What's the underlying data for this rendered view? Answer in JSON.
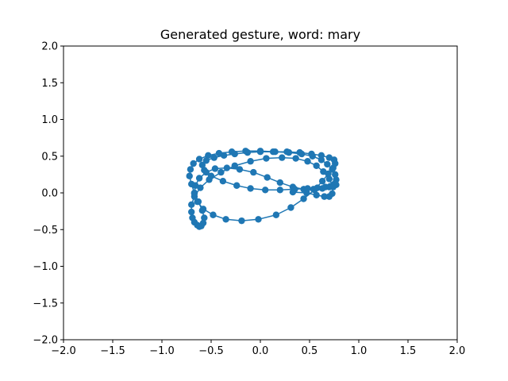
{
  "chart_data": {
    "type": "line",
    "title": "Generated gesture, word: mary",
    "xlabel": "",
    "ylabel": "",
    "xlim": [
      -2.0,
      2.0
    ],
    "ylim": [
      -2.0,
      2.0
    ],
    "xticks": [
      -2.0,
      -1.5,
      -1.0,
      -0.5,
      0.0,
      0.5,
      1.0,
      1.5,
      2.0
    ],
    "yticks": [
      -2.0,
      -1.5,
      -1.0,
      -0.5,
      0.0,
      0.5,
      1.0,
      1.5,
      2.0
    ],
    "xtick_labels": [
      "−2.0",
      "−1.5",
      "−1.0",
      "−0.5",
      "0.0",
      "0.5",
      "1.0",
      "1.5",
      "2.0"
    ],
    "ytick_labels": [
      "−2.0",
      "−1.5",
      "−1.0",
      "−0.5",
      "0.0",
      "0.5",
      "1.0",
      "1.5",
      "2.0"
    ],
    "grid": false,
    "color": "#1f77b4",
    "marker": "circle",
    "series": [
      {
        "x": [
          0.33,
          0.47,
          0.57,
          0.65,
          0.7,
          0.73,
          0.74,
          0.7,
          0.64,
          0.57,
          0.48,
          0.36,
          0.22,
          0.06,
          -0.1,
          -0.26,
          -0.4,
          -0.52,
          -0.61,
          -0.67,
          -0.7,
          -0.7,
          -0.69,
          -0.67,
          -0.64,
          -0.62,
          -0.6,
          -0.58,
          -0.57,
          -0.59,
          -0.63,
          -0.67,
          -0.7,
          -0.72,
          -0.71,
          -0.68,
          -0.62,
          -0.53,
          -0.42,
          -0.29,
          -0.15,
          0.0,
          0.15,
          0.29,
          0.42,
          0.53,
          0.62,
          0.68,
          0.73,
          0.76,
          0.77,
          0.75,
          0.7,
          0.63,
          0.54,
          0.44,
          0.33,
          0.2,
          0.07,
          -0.07,
          -0.21,
          -0.34,
          -0.46,
          -0.55,
          -0.62,
          -0.66,
          -0.67,
          -0.64,
          -0.58,
          -0.48,
          -0.35,
          -0.19,
          -0.02,
          0.16,
          0.31,
          0.44,
          0.55,
          0.63,
          0.69,
          0.74,
          0.76,
          0.75,
          0.7,
          0.62,
          0.52,
          0.4,
          0.27,
          0.13,
          0.0,
          -0.13,
          -0.26,
          -0.37,
          -0.47,
          -0.55,
          -0.59,
          -0.57,
          -0.5,
          -0.38,
          -0.24,
          -0.1,
          0.05,
          0.2,
          0.35,
          0.48,
          0.58,
          0.66,
          0.71,
          0.75,
          0.77
        ],
        "y": [
          0.01,
          0.0,
          -0.03,
          -0.05,
          -0.05,
          -0.01,
          0.08,
          0.19,
          0.29,
          0.37,
          0.43,
          0.47,
          0.48,
          0.47,
          0.43,
          0.37,
          0.28,
          0.18,
          0.07,
          -0.05,
          -0.16,
          -0.26,
          -0.34,
          -0.4,
          -0.44,
          -0.46,
          -0.45,
          -0.41,
          -0.34,
          -0.24,
          -0.12,
          0.0,
          0.12,
          0.23,
          0.32,
          0.4,
          0.46,
          0.51,
          0.54,
          0.56,
          0.57,
          0.57,
          0.56,
          0.55,
          0.53,
          0.5,
          0.45,
          0.39,
          0.32,
          0.25,
          0.18,
          0.12,
          0.08,
          0.06,
          0.05,
          0.05,
          0.08,
          0.14,
          0.21,
          0.28,
          0.32,
          0.34,
          0.33,
          0.28,
          0.2,
          0.1,
          -0.01,
          -0.12,
          -0.22,
          -0.3,
          -0.36,
          -0.38,
          -0.36,
          -0.3,
          -0.2,
          -0.08,
          0.04,
          0.16,
          0.26,
          0.34,
          0.4,
          0.45,
          0.48,
          0.51,
          0.53,
          0.55,
          0.56,
          0.56,
          0.56,
          0.55,
          0.53,
          0.51,
          0.48,
          0.44,
          0.38,
          0.31,
          0.23,
          0.16,
          0.1,
          0.06,
          0.04,
          0.04,
          0.05,
          0.06,
          0.07,
          0.08,
          0.09,
          0.1,
          0.11
        ]
      }
    ]
  }
}
